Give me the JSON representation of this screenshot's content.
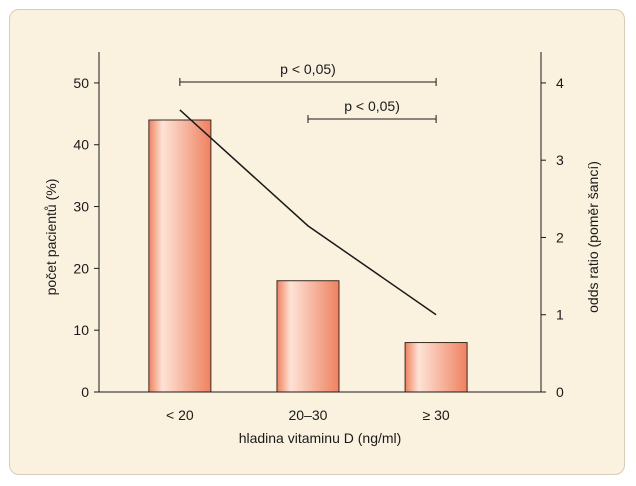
{
  "chart_data": {
    "type": "bar",
    "categories": [
      "< 20",
      "20–30",
      "≥ 30"
    ],
    "series": [
      {
        "axis": "left",
        "type": "bar",
        "values": [
          44,
          18,
          8
        ]
      },
      {
        "axis": "right",
        "type": "line",
        "values": [
          3.65,
          2.15,
          1.0
        ]
      }
    ],
    "xlabel": "hladina vitaminu D (ng/ml)",
    "ylabel": "počet pacientů (%)",
    "y2label": "odds ratio (poměr šancí)",
    "ylim": [
      0,
      55
    ],
    "y2lim": [
      0,
      4.4
    ],
    "yticks": [
      0,
      10,
      20,
      30,
      40,
      50
    ],
    "y2ticks": [
      0,
      1,
      2,
      3,
      4
    ],
    "annotations": [
      {
        "text": "p < 0,05)",
        "from": "< 20",
        "to": "≥ 30"
      },
      {
        "text": "p < 0,05)",
        "from": "20–30",
        "to": "≥ 30"
      }
    ],
    "colors": {
      "bar_edge": "#3a2a22",
      "bar_light": "#fde3d6",
      "bar_dark": "#ef8160",
      "line": "#1a1a1a",
      "background": "#fbf1df"
    }
  }
}
